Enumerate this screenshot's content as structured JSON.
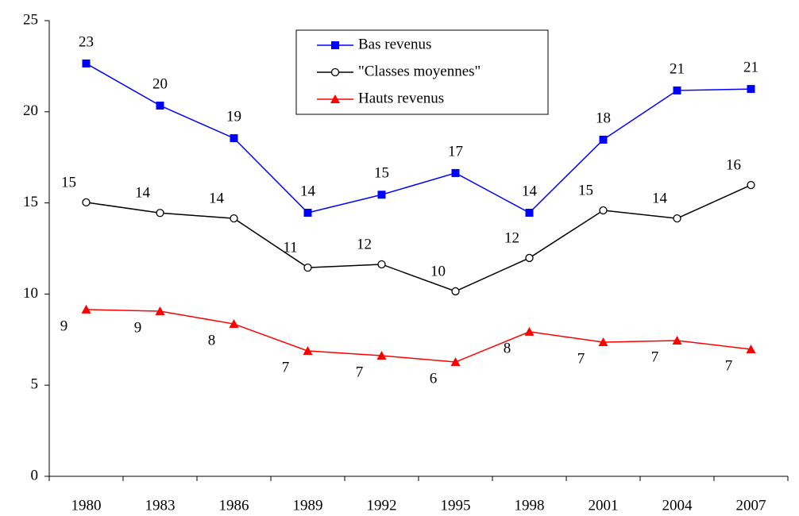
{
  "chart_data": {
    "type": "line",
    "categories": [
      "1980",
      "1983",
      "1986",
      "1989",
      "1992",
      "1995",
      "1998",
      "2001",
      "2004",
      "2007"
    ],
    "series": [
      {
        "name": "Bas revenus",
        "color": "#0000ff",
        "marker": "square",
        "values": [
          22.65,
          20.34,
          18.55,
          14.46,
          15.45,
          16.64,
          14.46,
          18.47,
          21.17,
          21.25
        ],
        "value_labels": [
          "23",
          "20",
          "19",
          "14",
          "15",
          "17",
          "14",
          "18",
          "21",
          "21"
        ]
      },
      {
        "name": "\"Classes moyennes\"",
        "color": "#000000",
        "marker": "circle",
        "values": [
          15.03,
          14.45,
          14.15,
          11.45,
          11.63,
          10.15,
          11.98,
          14.59,
          14.15,
          15.98
        ],
        "value_labels": [
          "15",
          "14",
          "14",
          "11",
          "12",
          "10",
          "12",
          "15",
          "14",
          "16"
        ]
      },
      {
        "name": "Hauts revenus",
        "color": "#ff0000",
        "marker": "triangle",
        "values": [
          9.15,
          9.06,
          8.36,
          6.88,
          6.62,
          6.27,
          7.93,
          7.36,
          7.45,
          6.97
        ],
        "value_labels": [
          "9",
          "9",
          "8",
          "7",
          "7",
          "6",
          "8",
          "7",
          "7",
          "7"
        ]
      }
    ],
    "ylim": [
      0,
      25
    ],
    "yticks": [
      0,
      5,
      10,
      15,
      20,
      25
    ],
    "grid": false,
    "legend": "top-center"
  }
}
